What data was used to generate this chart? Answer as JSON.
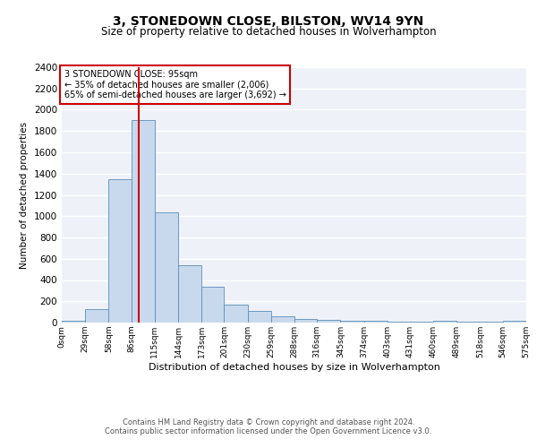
{
  "title1": "3, STONEDOWN CLOSE, BILSTON, WV14 9YN",
  "title2": "Size of property relative to detached houses in Wolverhampton",
  "xlabel": "Distribution of detached houses by size in Wolverhampton",
  "ylabel": "Number of detached properties",
  "annotation_line1": "3 STONEDOWN CLOSE: 95sqm",
  "annotation_line2": "← 35% of detached houses are smaller (2,006)",
  "annotation_line3": "65% of semi-detached houses are larger (3,692) →",
  "property_sqm": 95,
  "bin_edges": [
    0,
    29,
    58,
    86,
    115,
    144,
    173,
    201,
    230,
    259,
    288,
    316,
    345,
    374,
    403,
    431,
    460,
    489,
    518,
    546,
    575
  ],
  "bin_labels": [
    "0sqm",
    "29sqm",
    "58sqm",
    "86sqm",
    "115sqm",
    "144sqm",
    "173sqm",
    "201sqm",
    "230sqm",
    "259sqm",
    "288sqm",
    "316sqm",
    "345sqm",
    "374sqm",
    "403sqm",
    "431sqm",
    "460sqm",
    "489sqm",
    "518sqm",
    "546sqm",
    "575sqm"
  ],
  "bar_heights": [
    20,
    130,
    1350,
    1900,
    1040,
    540,
    340,
    170,
    110,
    55,
    35,
    25,
    20,
    15,
    10,
    5,
    20,
    5,
    5,
    20
  ],
  "bar_color": "#c9d9ed",
  "bar_edgecolor": "#5b8db8",
  "vline_color": "#cc0000",
  "vline_x": 95,
  "ylim": [
    0,
    2400
  ],
  "yticks": [
    0,
    200,
    400,
    600,
    800,
    1000,
    1200,
    1400,
    1600,
    1800,
    2000,
    2200,
    2400
  ],
  "bg_color": "#eef2f8",
  "fig_bg_color": "#ffffff",
  "footer1": "Contains HM Land Registry data © Crown copyright and database right 2024.",
  "footer2": "Contains public sector information licensed under the Open Government Licence v3.0.",
  "title1_fontsize": 10,
  "title2_fontsize": 8.5,
  "annotation_box_edgecolor": "#cc0000",
  "grid_color": "#ffffff",
  "footer_fontsize": 6.0
}
